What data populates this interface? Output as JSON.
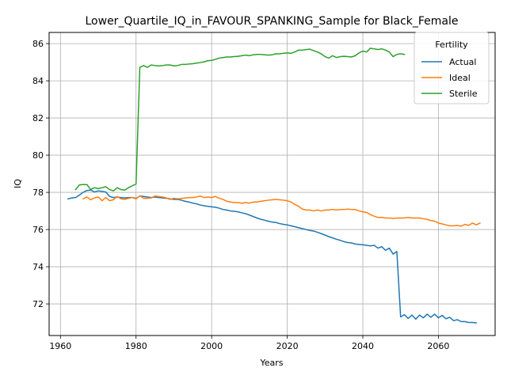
{
  "chart_data": {
    "type": "line",
    "title": "Lower_Quartile_IQ_in_FAVOUR_SPANKING_Sample for Black_Female",
    "xlabel": "Years",
    "ylabel": "IQ",
    "xlim": [
      1957,
      2075
    ],
    "ylim": [
      70.3,
      86.6
    ],
    "xticks": [
      1960,
      1980,
      2000,
      2020,
      2040,
      2060
    ],
    "yticks": [
      72,
      74,
      76,
      78,
      80,
      82,
      84,
      86
    ],
    "grid": true,
    "legend": {
      "title": "Fertility",
      "placement": "top-right"
    },
    "colors": {
      "Actual": "#1f77b4",
      "Ideal": "#ff7f0e",
      "Sterile": "#2ca02c"
    },
    "series": [
      {
        "name": "Actual",
        "points": [
          [
            1962,
            77.65
          ],
          [
            1963,
            77.7
          ],
          [
            1964,
            77.72
          ],
          [
            1965,
            77.85
          ],
          [
            1966,
            78.0
          ],
          [
            1967,
            78.1
          ],
          [
            1968,
            78.12
          ],
          [
            1969,
            78.02
          ],
          [
            1970,
            78.08
          ],
          [
            1971,
            78.05
          ],
          [
            1972,
            78.02
          ],
          [
            1973,
            77.78
          ],
          [
            1974,
            77.72
          ],
          [
            1975,
            77.75
          ],
          [
            1976,
            77.72
          ],
          [
            1977,
            77.7
          ],
          [
            1978,
            77.72
          ],
          [
            1979,
            77.72
          ],
          [
            1980,
            77.68
          ],
          [
            1981,
            77.8
          ],
          [
            1982,
            77.78
          ],
          [
            1983,
            77.75
          ],
          [
            1984,
            77.72
          ],
          [
            1985,
            77.75
          ],
          [
            1986,
            77.72
          ],
          [
            1987,
            77.7
          ],
          [
            1988,
            77.68
          ],
          [
            1989,
            77.65
          ],
          [
            1990,
            77.62
          ],
          [
            1991,
            77.62
          ],
          [
            1992,
            77.58
          ],
          [
            1993,
            77.52
          ],
          [
            1994,
            77.48
          ],
          [
            1995,
            77.42
          ],
          [
            1996,
            77.38
          ],
          [
            1997,
            77.32
          ],
          [
            1998,
            77.28
          ],
          [
            1999,
            77.25
          ],
          [
            2000,
            77.22
          ],
          [
            2001,
            77.2
          ],
          [
            2002,
            77.15
          ],
          [
            2003,
            77.08
          ],
          [
            2004,
            77.05
          ],
          [
            2005,
            77.0
          ],
          [
            2006,
            76.98
          ],
          [
            2007,
            76.95
          ],
          [
            2008,
            76.9
          ],
          [
            2009,
            76.85
          ],
          [
            2010,
            76.78
          ],
          [
            2011,
            76.7
          ],
          [
            2012,
            76.62
          ],
          [
            2013,
            76.55
          ],
          [
            2014,
            76.5
          ],
          [
            2015,
            76.45
          ],
          [
            2016,
            76.4
          ],
          [
            2017,
            76.38
          ],
          [
            2018,
            76.32
          ],
          [
            2019,
            76.28
          ],
          [
            2020,
            76.25
          ],
          [
            2021,
            76.2
          ],
          [
            2022,
            76.15
          ],
          [
            2023,
            76.1
          ],
          [
            2024,
            76.05
          ],
          [
            2025,
            76.0
          ],
          [
            2026,
            75.95
          ],
          [
            2027,
            75.92
          ],
          [
            2028,
            75.85
          ],
          [
            2029,
            75.78
          ],
          [
            2030,
            75.7
          ],
          [
            2031,
            75.62
          ],
          [
            2032,
            75.55
          ],
          [
            2033,
            75.48
          ],
          [
            2034,
            75.42
          ],
          [
            2035,
            75.35
          ],
          [
            2036,
            75.3
          ],
          [
            2037,
            75.28
          ],
          [
            2038,
            75.22
          ],
          [
            2039,
            75.2
          ],
          [
            2040,
            75.18
          ],
          [
            2041,
            75.15
          ],
          [
            2042,
            75.12
          ],
          [
            2043,
            75.15
          ],
          [
            2044,
            75.0
          ],
          [
            2045,
            75.08
          ],
          [
            2046,
            74.88
          ],
          [
            2047,
            75.0
          ],
          [
            2048,
            74.68
          ],
          [
            2049,
            74.82
          ],
          [
            2050,
            71.3
          ],
          [
            2051,
            71.42
          ],
          [
            2052,
            71.22
          ],
          [
            2053,
            71.4
          ],
          [
            2054,
            71.18
          ],
          [
            2055,
            71.4
          ],
          [
            2056,
            71.25
          ],
          [
            2057,
            71.45
          ],
          [
            2058,
            71.28
          ],
          [
            2059,
            71.45
          ],
          [
            2060,
            71.25
          ],
          [
            2061,
            71.38
          ],
          [
            2062,
            71.2
          ],
          [
            2063,
            71.28
          ],
          [
            2064,
            71.1
          ],
          [
            2065,
            71.15
          ],
          [
            2066,
            71.05
          ],
          [
            2067,
            71.05
          ],
          [
            2068,
            71.0
          ],
          [
            2069,
            71.0
          ],
          [
            2070,
            70.98
          ]
        ]
      },
      {
        "name": "Ideal",
        "points": [
          [
            1966,
            77.65
          ],
          [
            1967,
            77.75
          ],
          [
            1968,
            77.6
          ],
          [
            1969,
            77.7
          ],
          [
            1970,
            77.75
          ],
          [
            1971,
            77.55
          ],
          [
            1972,
            77.72
          ],
          [
            1973,
            77.55
          ],
          [
            1974,
            77.6
          ],
          [
            1975,
            77.78
          ],
          [
            1976,
            77.65
          ],
          [
            1977,
            77.62
          ],
          [
            1978,
            77.68
          ],
          [
            1979,
            77.72
          ],
          [
            1980,
            77.65
          ],
          [
            1981,
            77.82
          ],
          [
            1982,
            77.68
          ],
          [
            1983,
            77.68
          ],
          [
            1984,
            77.7
          ],
          [
            1985,
            77.8
          ],
          [
            1986,
            77.78
          ],
          [
            1987,
            77.75
          ],
          [
            1988,
            77.7
          ],
          [
            1989,
            77.62
          ],
          [
            1990,
            77.68
          ],
          [
            1991,
            77.65
          ],
          [
            1992,
            77.68
          ],
          [
            1993,
            77.7
          ],
          [
            1994,
            77.72
          ],
          [
            1995,
            77.72
          ],
          [
            1996,
            77.75
          ],
          [
            1997,
            77.8
          ],
          [
            1998,
            77.72
          ],
          [
            1999,
            77.75
          ],
          [
            2000,
            77.72
          ],
          [
            2001,
            77.78
          ],
          [
            2002,
            77.68
          ],
          [
            2003,
            77.62
          ],
          [
            2004,
            77.52
          ],
          [
            2005,
            77.48
          ],
          [
            2006,
            77.45
          ],
          [
            2007,
            77.45
          ],
          [
            2008,
            77.42
          ],
          [
            2009,
            77.45
          ],
          [
            2010,
            77.42
          ],
          [
            2011,
            77.48
          ],
          [
            2012,
            77.48
          ],
          [
            2013,
            77.52
          ],
          [
            2014,
            77.55
          ],
          [
            2015,
            77.58
          ],
          [
            2016,
            77.6
          ],
          [
            2017,
            77.62
          ],
          [
            2018,
            77.6
          ],
          [
            2019,
            77.58
          ],
          [
            2020,
            77.55
          ],
          [
            2021,
            77.48
          ],
          [
            2022,
            77.35
          ],
          [
            2023,
            77.25
          ],
          [
            2024,
            77.1
          ],
          [
            2025,
            77.05
          ],
          [
            2026,
            77.05
          ],
          [
            2027,
            77.0
          ],
          [
            2028,
            77.05
          ],
          [
            2029,
            77.0
          ],
          [
            2030,
            77.05
          ],
          [
            2031,
            77.05
          ],
          [
            2032,
            77.08
          ],
          [
            2033,
            77.05
          ],
          [
            2034,
            77.08
          ],
          [
            2035,
            77.08
          ],
          [
            2036,
            77.1
          ],
          [
            2037,
            77.08
          ],
          [
            2038,
            77.08
          ],
          [
            2039,
            77.0
          ],
          [
            2040,
            76.95
          ],
          [
            2041,
            76.92
          ],
          [
            2042,
            76.8
          ],
          [
            2043,
            76.72
          ],
          [
            2044,
            76.65
          ],
          [
            2045,
            76.65
          ],
          [
            2046,
            76.62
          ],
          [
            2047,
            76.62
          ],
          [
            2048,
            76.6
          ],
          [
            2049,
            76.62
          ],
          [
            2050,
            76.62
          ],
          [
            2051,
            76.62
          ],
          [
            2052,
            76.65
          ],
          [
            2053,
            76.62
          ],
          [
            2054,
            76.62
          ],
          [
            2055,
            76.62
          ],
          [
            2056,
            76.58
          ],
          [
            2057,
            76.55
          ],
          [
            2058,
            76.48
          ],
          [
            2059,
            76.45
          ],
          [
            2060,
            76.35
          ],
          [
            2061,
            76.3
          ],
          [
            2062,
            76.25
          ],
          [
            2063,
            76.2
          ],
          [
            2064,
            76.2
          ],
          [
            2065,
            76.22
          ],
          [
            2066,
            76.18
          ],
          [
            2067,
            76.28
          ],
          [
            2068,
            76.22
          ],
          [
            2069,
            76.35
          ],
          [
            2070,
            76.25
          ],
          [
            2071,
            76.35
          ]
        ]
      },
      {
        "name": "Sterile",
        "points": [
          [
            1964,
            78.15
          ],
          [
            1965,
            78.4
          ],
          [
            1966,
            78.42
          ],
          [
            1967,
            78.42
          ],
          [
            1968,
            78.15
          ],
          [
            1969,
            78.25
          ],
          [
            1970,
            78.2
          ],
          [
            1971,
            78.25
          ],
          [
            1972,
            78.3
          ],
          [
            1973,
            78.15
          ],
          [
            1974,
            78.08
          ],
          [
            1975,
            78.25
          ],
          [
            1976,
            78.15
          ],
          [
            1977,
            78.12
          ],
          [
            1978,
            78.25
          ],
          [
            1979,
            78.35
          ],
          [
            1980,
            78.45
          ],
          [
            1981,
            84.72
          ],
          [
            1982,
            84.82
          ],
          [
            1983,
            84.72
          ],
          [
            1984,
            84.85
          ],
          [
            1985,
            84.82
          ],
          [
            1986,
            84.8
          ],
          [
            1987,
            84.82
          ],
          [
            1988,
            84.85
          ],
          [
            1989,
            84.85
          ],
          [
            1990,
            84.8
          ],
          [
            1991,
            84.82
          ],
          [
            1992,
            84.88
          ],
          [
            1993,
            84.88
          ],
          [
            1994,
            84.9
          ],
          [
            1995,
            84.92
          ],
          [
            1996,
            84.95
          ],
          [
            1997,
            84.98
          ],
          [
            1998,
            85.02
          ],
          [
            1999,
            85.08
          ],
          [
            2000,
            85.1
          ],
          [
            2001,
            85.15
          ],
          [
            2002,
            85.22
          ],
          [
            2003,
            85.25
          ],
          [
            2004,
            85.28
          ],
          [
            2005,
            85.28
          ],
          [
            2006,
            85.3
          ],
          [
            2007,
            85.32
          ],
          [
            2008,
            85.35
          ],
          [
            2009,
            85.38
          ],
          [
            2010,
            85.35
          ],
          [
            2011,
            85.4
          ],
          [
            2012,
            85.42
          ],
          [
            2013,
            85.42
          ],
          [
            2014,
            85.4
          ],
          [
            2015,
            85.38
          ],
          [
            2016,
            85.4
          ],
          [
            2017,
            85.45
          ],
          [
            2018,
            85.45
          ],
          [
            2019,
            85.48
          ],
          [
            2020,
            85.5
          ],
          [
            2021,
            85.48
          ],
          [
            2022,
            85.55
          ],
          [
            2023,
            85.65
          ],
          [
            2024,
            85.65
          ],
          [
            2025,
            85.68
          ],
          [
            2026,
            85.7
          ],
          [
            2027,
            85.62
          ],
          [
            2028,
            85.55
          ],
          [
            2029,
            85.45
          ],
          [
            2030,
            85.3
          ],
          [
            2031,
            85.22
          ],
          [
            2032,
            85.35
          ],
          [
            2033,
            85.25
          ],
          [
            2034,
            85.3
          ],
          [
            2035,
            85.32
          ],
          [
            2036,
            85.3
          ],
          [
            2037,
            85.28
          ],
          [
            2038,
            85.35
          ],
          [
            2039,
            85.5
          ],
          [
            2040,
            85.6
          ],
          [
            2041,
            85.55
          ],
          [
            2042,
            85.75
          ],
          [
            2043,
            85.72
          ],
          [
            2044,
            85.68
          ],
          [
            2045,
            85.72
          ],
          [
            2046,
            85.65
          ],
          [
            2047,
            85.55
          ],
          [
            2048,
            85.3
          ],
          [
            2049,
            85.42
          ],
          [
            2050,
            85.45
          ],
          [
            2051,
            85.42
          ]
        ]
      }
    ]
  }
}
